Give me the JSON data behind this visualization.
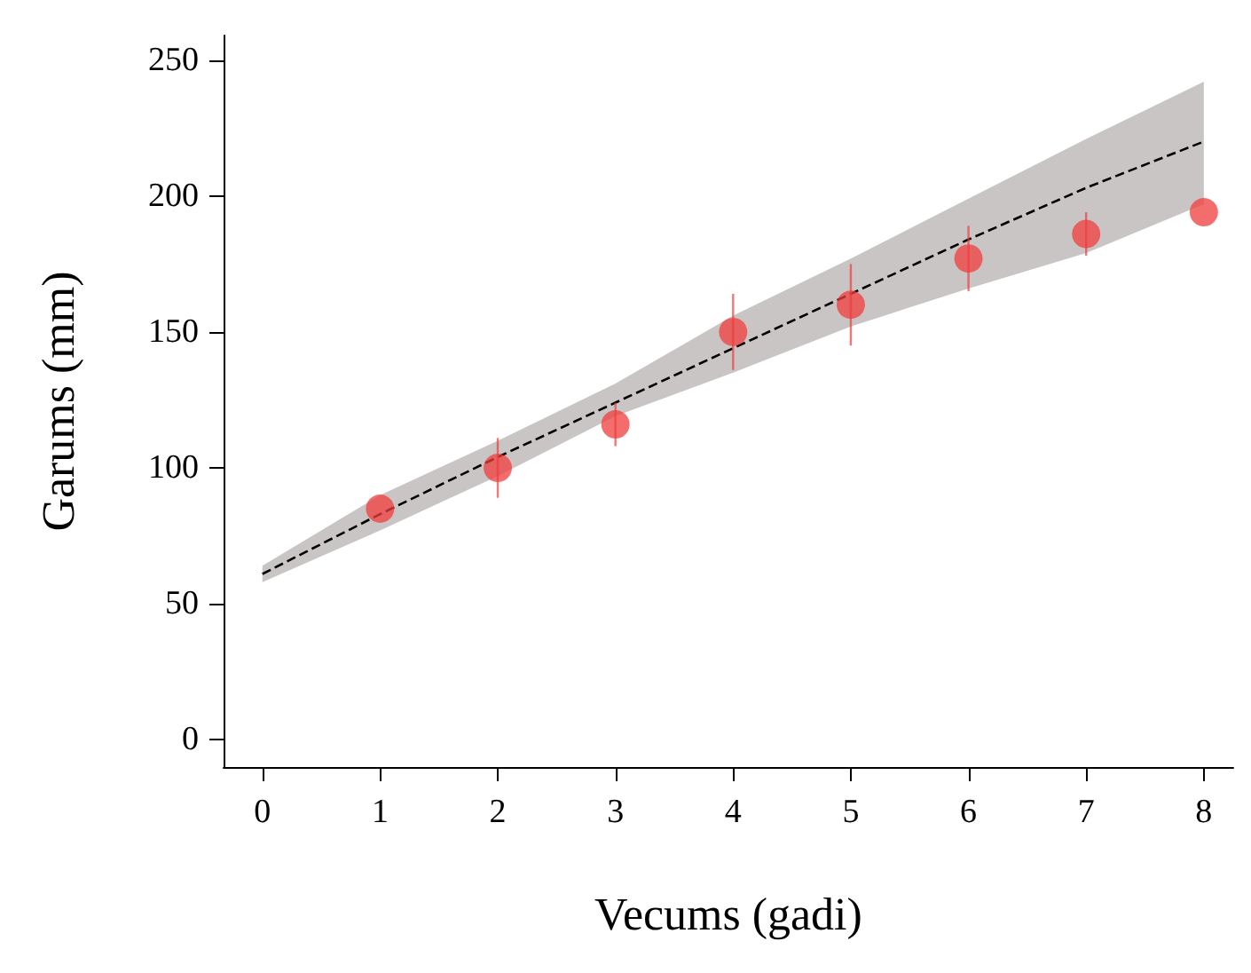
{
  "chart_data": {
    "type": "scatter",
    "xlabel": "Vecums (gadi)",
    "ylabel": "Garums (mm)",
    "xlim": [
      -0.33,
      8.25
    ],
    "ylim": [
      -10,
      259
    ],
    "xticks": [
      0,
      1,
      2,
      3,
      4,
      5,
      6,
      7,
      8
    ],
    "yticks": [
      0,
      50,
      100,
      150,
      200,
      250
    ],
    "series": [
      {
        "type": "line",
        "color": "#000000",
        "line_style": "dashed",
        "x": [
          0,
          1,
          2,
          3,
          4,
          5,
          6,
          7,
          8
        ],
        "values": [
          61,
          83,
          104,
          124,
          144,
          164,
          184,
          203,
          220
        ],
        "lower": [
          58,
          77,
          97,
          119,
          135,
          152,
          166,
          179,
          197
        ],
        "upper": [
          64,
          90,
          110,
          131,
          156,
          177,
          199,
          221,
          242
        ]
      },
      {
        "marker": "circle",
        "color": "#f03c3c",
        "x": [
          1,
          2,
          3,
          4,
          5,
          6,
          7,
          8
        ],
        "values": [
          85,
          100,
          116,
          150,
          160,
          177,
          186,
          194
        ],
        "errors": [
          null,
          11,
          8,
          14,
          15,
          12,
          8,
          null
        ]
      }
    ]
  }
}
